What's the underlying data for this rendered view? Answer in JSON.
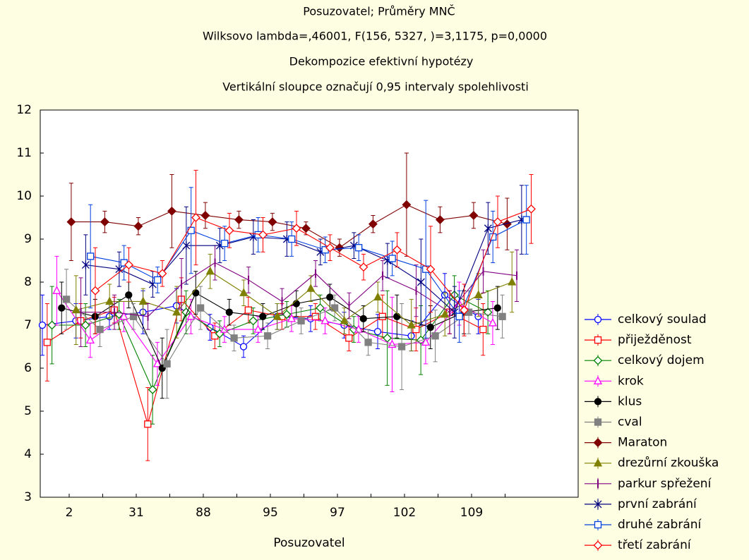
{
  "chart_data": {
    "type": "line",
    "title": "Posuzovatel; Průměry MNČ",
    "subtitles": [
      "Wilksovo lambda=,46001, F(156, 5327, )=3,1175, p=0,0000",
      "Dekompozice efektivní hypotézy",
      "Vertikální sloupce označují 0,95 intervaly spolehlivosti"
    ],
    "x_label": "Posuzovatel",
    "categories": [
      "2",
      null,
      "31",
      null,
      "88",
      null,
      "95",
      null,
      "97",
      null,
      "102",
      null,
      "109",
      null
    ],
    "ylim": [
      3,
      12
    ],
    "yticks": [
      3,
      4,
      5,
      6,
      7,
      8,
      9,
      10,
      11,
      12
    ],
    "grid": false,
    "legend": "right",
    "series": [
      {
        "name": "celkový soulad",
        "color": "#0000ff",
        "marker": "circle",
        "filled": false,
        "values": [
          7.0,
          7.1,
          7.2,
          7.3,
          7.45,
          6.95,
          6.5,
          7.2,
          7.15,
          7.0,
          6.85,
          6.75,
          7.7,
          7.2
        ],
        "errors": [
          0.7,
          0.4,
          0.3,
          0.5,
          0.4,
          0.3,
          0.25,
          0.3,
          0.3,
          0.3,
          0.4,
          0.35,
          0.5,
          0.4
        ]
      },
      {
        "name": "přiježděnost",
        "color": "#ff0000",
        "marker": "square",
        "filled": false,
        "values": [
          6.6,
          7.1,
          7.35,
          4.7,
          7.6,
          6.75,
          7.35,
          7.2,
          7.2,
          6.7,
          7.2,
          6.9,
          7.3,
          6.9
        ],
        "errors": [
          0.9,
          0.4,
          0.3,
          0.85,
          0.5,
          0.3,
          0.3,
          0.3,
          0.3,
          0.3,
          0.5,
          0.5,
          0.5,
          0.6
        ]
      },
      {
        "name": "celkový dojem",
        "color": "#008000",
        "marker": "diamond",
        "filled": false,
        "values": [
          7.0,
          7.0,
          7.25,
          5.5,
          7.3,
          6.8,
          7.1,
          7.25,
          7.4,
          6.9,
          6.7,
          6.65,
          7.7,
          7.3
        ],
        "errors": [
          0.9,
          0.5,
          0.35,
          0.8,
          0.5,
          0.3,
          0.3,
          0.3,
          0.3,
          0.3,
          1.1,
          0.8,
          0.45,
          0.5
        ]
      },
      {
        "name": "krok",
        "color": "#ff00ff",
        "marker": "triangle",
        "filled": false,
        "values": [
          7.8,
          6.65,
          7.2,
          6.1,
          7.2,
          6.9,
          6.9,
          7.15,
          7.1,
          6.9,
          6.55,
          6.6,
          7.5,
          7.05
        ],
        "errors": [
          0.8,
          0.4,
          0.35,
          0.5,
          0.4,
          0.3,
          0.3,
          0.3,
          0.3,
          0.3,
          1.1,
          0.5,
          0.5,
          0.5
        ]
      },
      {
        "name": "klus",
        "color": "#000000",
        "marker": "circle",
        "filled": true,
        "values": [
          7.4,
          7.2,
          7.7,
          6.0,
          7.75,
          7.3,
          7.2,
          7.5,
          7.65,
          7.15,
          7.2,
          6.95,
          7.3,
          7.4
        ],
        "errors": [
          0.6,
          0.4,
          0.3,
          0.7,
          0.5,
          0.3,
          0.3,
          0.3,
          0.3,
          0.3,
          0.5,
          0.5,
          0.5,
          0.5
        ]
      },
      {
        "name": "cval",
        "color": "#808080",
        "marker": "square",
        "filled": true,
        "values": [
          7.6,
          6.9,
          7.2,
          6.1,
          7.4,
          6.7,
          6.75,
          7.1,
          7.4,
          6.6,
          6.5,
          6.75,
          7.3,
          7.2
        ],
        "errors": [
          0.7,
          0.4,
          0.3,
          0.8,
          0.5,
          0.3,
          0.3,
          0.3,
          0.3,
          0.3,
          1.0,
          0.6,
          0.5,
          0.5
        ]
      },
      {
        "name": "Maraton",
        "color": "#800000",
        "marker": "diamond",
        "filled": true,
        "values": [
          9.4,
          9.4,
          9.3,
          9.65,
          9.55,
          9.45,
          9.4,
          9.25,
          8.8,
          9.35,
          9.8,
          9.45,
          9.55,
          9.35
        ],
        "errors": [
          0.9,
          0.25,
          0.2,
          0.85,
          0.3,
          0.2,
          0.2,
          0.15,
          0.2,
          0.2,
          1.2,
          0.3,
          0.3,
          0.6
        ]
      },
      {
        "name": "drezůrní zkouška",
        "color": "#808000",
        "marker": "triangle",
        "filled": true,
        "values": [
          7.35,
          7.55,
          7.55,
          7.3,
          8.25,
          7.75,
          7.2,
          7.85,
          7.1,
          7.65,
          7.0,
          7.25,
          7.7,
          8.0
        ],
        "errors": [
          0.8,
          0.4,
          0.3,
          0.6,
          0.4,
          0.3,
          0.3,
          0.3,
          0.3,
          0.35,
          0.6,
          0.5,
          0.5,
          0.7
        ]
      },
      {
        "name": "parkur spřežení",
        "color": "#800080",
        "marker": "vbar",
        "filled": false,
        "values": [
          7.3,
          7.3,
          7.2,
          7.95,
          8.45,
          8.05,
          7.55,
          8.2,
          7.45,
          8.15,
          7.8,
          7.3,
          8.25,
          8.15
        ],
        "errors": [
          0.8,
          0.4,
          0.3,
          0.6,
          0.4,
          0.3,
          0.3,
          0.3,
          0.3,
          0.35,
          0.6,
          0.5,
          0.5,
          0.6
        ]
      },
      {
        "name": "první zabrání",
        "color": "#000080",
        "marker": "star",
        "filled": false,
        "values": [
          8.4,
          8.3,
          7.95,
          8.85,
          8.85,
          9.05,
          9.0,
          8.7,
          8.85,
          8.5,
          8.0,
          7.3,
          9.25,
          9.45
        ],
        "errors": [
          0.7,
          0.4,
          0.3,
          0.9,
          0.4,
          0.4,
          0.4,
          0.3,
          0.3,
          0.4,
          1.0,
          0.6,
          0.6,
          0.8
        ]
      },
      {
        "name": "druhé zabrání",
        "color": "#0040e0",
        "marker": "square",
        "filled": false,
        "values": [
          8.6,
          8.45,
          8.05,
          9.2,
          8.9,
          9.1,
          9.0,
          8.75,
          8.8,
          8.55,
          8.3,
          7.2,
          9.05,
          9.45
        ],
        "errors": [
          1.2,
          0.4,
          0.3,
          1.0,
          0.4,
          0.4,
          0.4,
          0.3,
          0.3,
          0.4,
          1.6,
          0.6,
          0.6,
          0.8
        ]
      },
      {
        "name": "třetí zabrání",
        "color": "#ff0000",
        "marker": "diamond",
        "filled": false,
        "values": [
          7.8,
          8.4,
          8.2,
          9.5,
          9.2,
          9.1,
          9.25,
          8.8,
          8.35,
          8.75,
          8.3,
          7.35,
          9.4,
          9.7
        ],
        "errors": [
          1.0,
          0.4,
          0.3,
          1.1,
          0.4,
          0.4,
          0.4,
          0.3,
          0.3,
          0.4,
          1.0,
          0.6,
          0.6,
          0.8
        ]
      }
    ]
  }
}
